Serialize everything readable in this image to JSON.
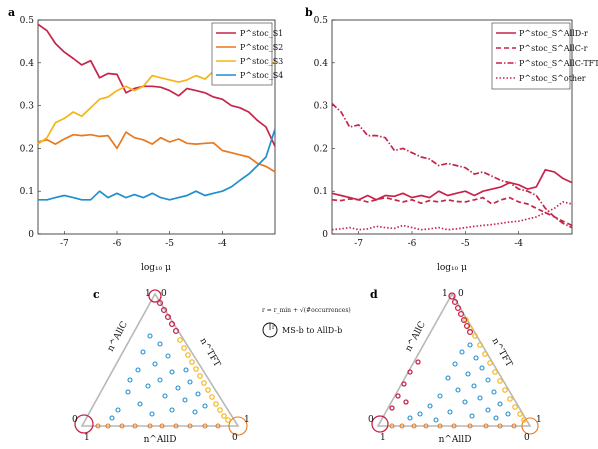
{
  "colors": {
    "s1": "#c7244a",
    "s2": "#e8791f",
    "s3": "#f5b51a",
    "s4": "#1f8fcf"
  },
  "chart_data": [
    {
      "panel": "a",
      "type": "line",
      "xlabel": "log₁₀ μ",
      "ylabel": "",
      "xlim": [
        -7.5,
        -3.0
      ],
      "ylim": [
        0,
        0.5
      ],
      "xticks": [
        "-7",
        "-6",
        "-5",
        "-4"
      ],
      "yticks": [
        "0",
        "0.1",
        "0.2",
        "0.3",
        "0.4",
        "0.5"
      ],
      "legend_position": "top-right",
      "x": [
        -7.5,
        -7.33,
        -7.17,
        -7.0,
        -6.83,
        -6.67,
        -6.5,
        -6.33,
        -6.17,
        -6.0,
        -5.83,
        -5.67,
        -5.5,
        -5.33,
        -5.17,
        -5.0,
        -4.83,
        -4.67,
        -4.5,
        -4.33,
        -4.17,
        -4.0,
        -3.83,
        -3.67,
        -3.5,
        -3.33,
        -3.17,
        -3.0
      ],
      "series": [
        {
          "name": "P^stoc_S1",
          "color": "#c7244a",
          "values": [
            0.49,
            0.475,
            0.445,
            0.425,
            0.41,
            0.395,
            0.405,
            0.365,
            0.375,
            0.373,
            0.33,
            0.34,
            0.345,
            0.345,
            0.343,
            0.335,
            0.323,
            0.34,
            0.335,
            0.33,
            0.32,
            0.315,
            0.3,
            0.295,
            0.285,
            0.265,
            0.25,
            0.205
          ]
        },
        {
          "name": "P^stoc_S2",
          "color": "#e8791f",
          "values": [
            0.215,
            0.22,
            0.21,
            0.222,
            0.232,
            0.23,
            0.232,
            0.228,
            0.23,
            0.2,
            0.238,
            0.225,
            0.22,
            0.21,
            0.225,
            0.215,
            0.222,
            0.212,
            0.21,
            0.212,
            0.213,
            0.195,
            0.19,
            0.185,
            0.18,
            0.165,
            0.158,
            0.145
          ]
        },
        {
          "name": "P^stoc_S3",
          "color": "#f5b51a",
          "values": [
            0.21,
            0.225,
            0.26,
            0.27,
            0.285,
            0.275,
            0.295,
            0.315,
            0.32,
            0.335,
            0.345,
            0.335,
            0.345,
            0.37,
            0.365,
            0.36,
            0.355,
            0.36,
            0.37,
            0.362,
            0.38,
            0.37,
            0.4,
            0.39,
            0.395,
            0.39,
            0.405,
            0.398
          ]
        },
        {
          "name": "P^stoc_S4",
          "color": "#1f8fcf",
          "values": [
            0.08,
            0.08,
            0.085,
            0.09,
            0.085,
            0.08,
            0.08,
            0.1,
            0.085,
            0.095,
            0.085,
            0.092,
            0.085,
            0.095,
            0.085,
            0.08,
            0.085,
            0.09,
            0.1,
            0.09,
            0.095,
            0.1,
            0.11,
            0.125,
            0.14,
            0.16,
            0.18,
            0.245
          ]
        }
      ]
    },
    {
      "panel": "b",
      "type": "line",
      "xlabel": "log₁₀ μ",
      "ylabel": "",
      "xlim": [
        -7.5,
        -3.0
      ],
      "ylim": [
        0,
        0.5
      ],
      "xticks": [
        "-7",
        "-6",
        "-5",
        "-4"
      ],
      "yticks": [
        "0",
        "0.1",
        "0.2",
        "0.3",
        "0.4",
        "0.5"
      ],
      "legend_position": "top-right",
      "x": [
        -7.5,
        -7.33,
        -7.17,
        -7.0,
        -6.83,
        -6.67,
        -6.5,
        -6.33,
        -6.17,
        -6.0,
        -5.83,
        -5.67,
        -5.5,
        -5.33,
        -5.17,
        -5.0,
        -4.83,
        -4.67,
        -4.5,
        -4.33,
        -4.17,
        -4.0,
        -3.83,
        -3.67,
        -3.5,
        -3.33,
        -3.17,
        -3.0
      ],
      "series": [
        {
          "name": "P^stoc_S^AllD-r",
          "color": "#c7244a",
          "dash": "solid",
          "values": [
            0.095,
            0.09,
            0.085,
            0.08,
            0.09,
            0.08,
            0.09,
            0.088,
            0.095,
            0.085,
            0.09,
            0.085,
            0.1,
            0.09,
            0.095,
            0.1,
            0.09,
            0.1,
            0.105,
            0.11,
            0.12,
            0.115,
            0.105,
            0.11,
            0.15,
            0.145,
            0.13,
            0.12
          ]
        },
        {
          "name": "P^stoc_S^AllC-r",
          "color": "#c7244a",
          "dash": "dashed",
          "values": [
            0.08,
            0.078,
            0.082,
            0.08,
            0.075,
            0.08,
            0.085,
            0.08,
            0.075,
            0.08,
            0.072,
            0.078,
            0.075,
            0.08,
            0.076,
            0.075,
            0.08,
            0.085,
            0.07,
            0.08,
            0.085,
            0.075,
            0.07,
            0.06,
            0.05,
            0.04,
            0.03,
            0.02
          ]
        },
        {
          "name": "P^stoc_S^AllC-TFT",
          "color": "#c7244a",
          "dash": "dashdot",
          "values": [
            0.305,
            0.285,
            0.25,
            0.255,
            0.23,
            0.23,
            0.225,
            0.195,
            0.2,
            0.19,
            0.18,
            0.175,
            0.16,
            0.165,
            0.16,
            0.155,
            0.14,
            0.145,
            0.135,
            0.125,
            0.12,
            0.105,
            0.1,
            0.09,
            0.06,
            0.04,
            0.025,
            0.015
          ]
        },
        {
          "name": "P^stoc_S^other",
          "color": "#c7244a",
          "dash": "dotted",
          "values": [
            0.01,
            0.012,
            0.015,
            0.01,
            0.012,
            0.018,
            0.015,
            0.013,
            0.02,
            0.015,
            0.01,
            0.012,
            0.015,
            0.01,
            0.012,
            0.015,
            0.018,
            0.02,
            0.022,
            0.025,
            0.028,
            0.03,
            0.035,
            0.04,
            0.05,
            0.06,
            0.075,
            0.07
          ]
        }
      ]
    }
  ],
  "panels": {
    "a": "a",
    "b": "b",
    "c": "c",
    "d": "d"
  },
  "ternary": {
    "label_allc": "n^AllC",
    "label_tft": "n^TFT",
    "label_alld": "n^AllD",
    "corner_top_left": "1",
    "corner_top_right": "0",
    "corner_left_top": "0",
    "corner_left_bottom": "1",
    "corner_right_top": "1",
    "corner_right_bottom": "0",
    "legend_formula": "r = r_min + √(#occurrences)",
    "legend_r": "r",
    "legend_text": "MS-b to AllD-b"
  }
}
